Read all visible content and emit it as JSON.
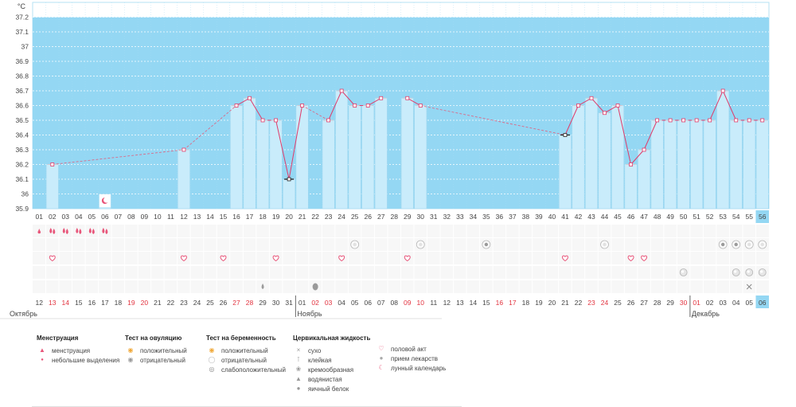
{
  "chart_data": {
    "type": "line",
    "unit_label": "°C",
    "ylim": [
      35.9,
      37.3
    ],
    "y_ticks": [
      "35.9",
      "36",
      "36.1",
      "36.2",
      "36.3",
      "36.4",
      "36.5",
      "36.6",
      "36.7",
      "36.8",
      "36.9",
      "37",
      "37.1",
      "37.2"
    ],
    "cycle_days": [
      "01",
      "02",
      "03",
      "04",
      "05",
      "06",
      "07",
      "08",
      "09",
      "10",
      "11",
      "12",
      "13",
      "14",
      "15",
      "16",
      "17",
      "18",
      "19",
      "20",
      "21",
      "22",
      "23",
      "24",
      "25",
      "26",
      "27",
      "28",
      "29",
      "30",
      "31",
      "32",
      "33",
      "34",
      "35",
      "36",
      "37",
      "38",
      "39",
      "40",
      "41",
      "42",
      "43",
      "44",
      "45",
      "46",
      "47",
      "48",
      "49",
      "50",
      "51",
      "52",
      "53",
      "54",
      "55",
      "56"
    ],
    "current_day_index": 55,
    "temperatures": [
      {
        "day": 2,
        "value": 36.2,
        "marker": "normal"
      },
      {
        "day": 12,
        "value": 36.3,
        "marker": "normal"
      },
      {
        "day": 16,
        "value": 36.6,
        "marker": "normal"
      },
      {
        "day": 17,
        "value": 36.65,
        "marker": "normal"
      },
      {
        "day": 18,
        "value": 36.5,
        "marker": "normal"
      },
      {
        "day": 19,
        "value": 36.5,
        "marker": "normal"
      },
      {
        "day": 20,
        "value": 36.1,
        "marker": "excluded"
      },
      {
        "day": 21,
        "value": 36.6,
        "marker": "normal"
      },
      {
        "day": 23,
        "value": 36.5,
        "marker": "normal"
      },
      {
        "day": 24,
        "value": 36.7,
        "marker": "normal"
      },
      {
        "day": 25,
        "value": 36.6,
        "marker": "normal"
      },
      {
        "day": 26,
        "value": 36.6,
        "marker": "normal"
      },
      {
        "day": 27,
        "value": 36.65,
        "marker": "normal"
      },
      {
        "day": 29,
        "value": 36.65,
        "marker": "normal"
      },
      {
        "day": 30,
        "value": 36.6,
        "marker": "normal"
      },
      {
        "day": 41,
        "value": 36.4,
        "marker": "excluded"
      },
      {
        "day": 42,
        "value": 36.6,
        "marker": "normal"
      },
      {
        "day": 43,
        "value": 36.65,
        "marker": "normal"
      },
      {
        "day": 44,
        "value": 36.55,
        "marker": "normal"
      },
      {
        "day": 45,
        "value": 36.6,
        "marker": "normal"
      },
      {
        "day": 46,
        "value": 36.2,
        "marker": "normal"
      },
      {
        "day": 47,
        "value": 36.3,
        "marker": "normal"
      },
      {
        "day": 48,
        "value": 36.5,
        "marker": "normal"
      },
      {
        "day": 49,
        "value": 36.5,
        "marker": "normal"
      },
      {
        "day": 50,
        "value": 36.5,
        "marker": "normal"
      },
      {
        "day": 51,
        "value": 36.5,
        "marker": "normal"
      },
      {
        "day": 52,
        "value": 36.5,
        "marker": "normal"
      },
      {
        "day": 53,
        "value": 36.7,
        "marker": "normal"
      },
      {
        "day": 54,
        "value": 36.5,
        "marker": "normal"
      },
      {
        "day": 55,
        "value": 36.5,
        "marker": "normal"
      },
      {
        "day": 56,
        "value": 36.5,
        "marker": "normal"
      }
    ],
    "dashed_gaps": [
      [
        2,
        12
      ],
      [
        12,
        16
      ],
      [
        21,
        23
      ],
      [
        30,
        41
      ]
    ],
    "extra_bars": [
      {
        "day": 6,
        "value": 36.0
      }
    ],
    "symbol_rows": {
      "menstruation": [
        {
          "day": 1,
          "kind": "light"
        },
        {
          "day": 2,
          "kind": "heavy"
        },
        {
          "day": 3,
          "kind": "heavy"
        },
        {
          "day": 4,
          "kind": "heavy"
        },
        {
          "day": 5,
          "kind": "heavy"
        },
        {
          "day": 6,
          "kind": "heavy"
        }
      ],
      "pregnancy_test": [
        {
          "day": 25,
          "kind": "negative"
        },
        {
          "day": 30,
          "kind": "negative"
        },
        {
          "day": 35,
          "kind": "weak"
        },
        {
          "day": 44,
          "kind": "negative"
        },
        {
          "day": 53,
          "kind": "weak"
        },
        {
          "day": 54,
          "kind": "weak"
        },
        {
          "day": 55,
          "kind": "negative"
        },
        {
          "day": 56,
          "kind": "negative"
        }
      ],
      "intercourse": [
        2,
        12,
        15,
        19,
        24,
        29,
        41,
        46,
        47
      ],
      "medication": [
        50,
        54,
        55,
        56
      ],
      "cervical_fluid": [
        {
          "day": 18,
          "kind": "watery"
        },
        {
          "day": 22,
          "kind": "egg-white"
        },
        {
          "day": 55,
          "kind": "dry"
        }
      ]
    },
    "moon_day": 6,
    "calendar_dates": [
      "12",
      "13",
      "14",
      "15",
      "16",
      "17",
      "18",
      "19",
      "20",
      "21",
      "22",
      "23",
      "24",
      "25",
      "26",
      "27",
      "28",
      "29",
      "30",
      "31",
      "01",
      "02",
      "03",
      "04",
      "05",
      "06",
      "07",
      "08",
      "09",
      "10",
      "11",
      "12",
      "13",
      "14",
      "15",
      "16",
      "17",
      "18",
      "19",
      "20",
      "21",
      "22",
      "23",
      "24",
      "25",
      "26",
      "27",
      "28",
      "29",
      "30",
      "01",
      "02",
      "03",
      "04",
      "05",
      "06"
    ],
    "weekend_indices": [
      1,
      2,
      7,
      8,
      15,
      16,
      21,
      22,
      28,
      29,
      35,
      36,
      42,
      43,
      49,
      50
    ],
    "months": [
      {
        "label": "Октябрь",
        "start_index": 0
      },
      {
        "label": "Ноябрь",
        "start_index": 20
      },
      {
        "label": "Декабрь",
        "start_index": 50
      }
    ]
  },
  "legend": {
    "menstruation": {
      "title": "Менструация",
      "items": [
        "менструация",
        "небольшие выделения"
      ]
    },
    "ovulation": {
      "title": "Тест на овуляцию",
      "items": [
        "положительный",
        "отрицательный"
      ]
    },
    "pregnancy": {
      "title": "Тест на беременность",
      "items": [
        "положительный",
        "отрицательный",
        "слабоположительный"
      ]
    },
    "cervical": {
      "title": "Цервикальная жидкость",
      "items": [
        "сухо",
        "клейкая",
        "кремообразная",
        "водянистая",
        "яичный белок"
      ]
    },
    "other": {
      "items": [
        "половой акт",
        "прием лекарств",
        "лунный календарь"
      ]
    }
  },
  "colors": {
    "plot_bg": "#94d7f3",
    "bar_fill": "#c9ecfb",
    "bar_edge": "#9cd6ef",
    "line": "#e03b6a",
    "dashed": "#e0607f",
    "weekend_text": "#e2333f",
    "highlight": "#94d7f3",
    "heart": "#e8567a"
  }
}
